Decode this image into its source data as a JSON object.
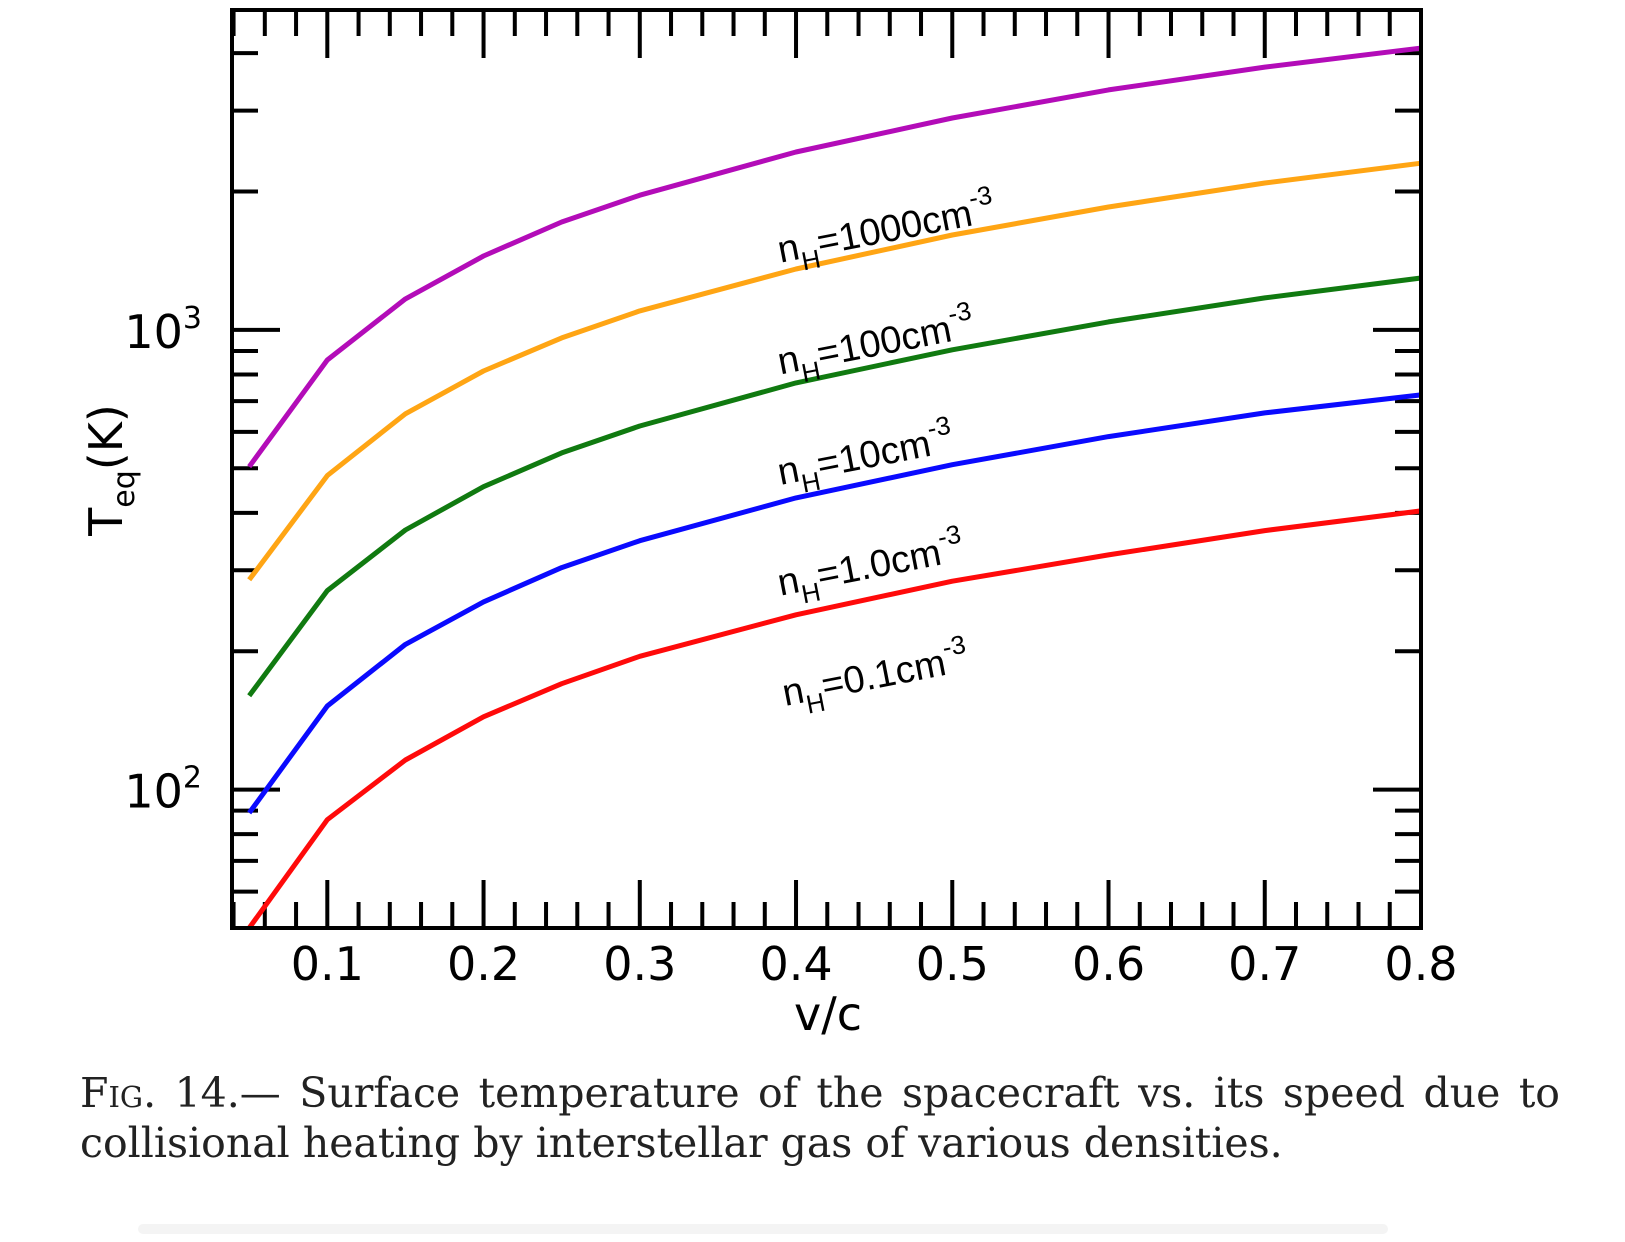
{
  "chart_data": {
    "type": "line",
    "title": "",
    "xlabel": "v/c",
    "ylabel_main": "T",
    "ylabel_sub": "eq",
    "ylabel_unit": "(K)",
    "xscale": "linear",
    "yscale": "log",
    "xlim": [
      0.039,
      0.8
    ],
    "ylim": [
      50,
      4965
    ],
    "grid": false,
    "x_ticks": [
      {
        "value": 0.1,
        "label": "0.1"
      },
      {
        "value": 0.2,
        "label": "0.2"
      },
      {
        "value": 0.3,
        "label": "0.3"
      },
      {
        "value": 0.4,
        "label": "0.4"
      },
      {
        "value": 0.5,
        "label": "0.5"
      },
      {
        "value": 0.6,
        "label": "0.6"
      },
      {
        "value": 0.7,
        "label": "0.7"
      },
      {
        "value": 0.8,
        "label": "0.8"
      }
    ],
    "y_ticks": [
      {
        "value": 100,
        "base": "10",
        "exp": "2"
      },
      {
        "value": 1000,
        "base": "10",
        "exp": "3"
      }
    ],
    "x": [
      0.05,
      0.1,
      0.15,
      0.2,
      0.25,
      0.3,
      0.4,
      0.5,
      0.6,
      0.7,
      0.8
    ],
    "series": [
      {
        "name": "nH=1000cm-3",
        "color": "#b30cb8",
        "values": [
          504,
          860,
          1168,
          1448,
          1717,
          1964,
          2438,
          2890,
          3327,
          3730,
          4102
        ]
      },
      {
        "name": "nH=100cm-3",
        "color": "#ffa514",
        "values": [
          286,
          482,
          657,
          814,
          961,
          1100,
          1357,
          1609,
          1851,
          2087,
          2305
        ]
      },
      {
        "name": "nH=10cm-3",
        "color": "#107a10",
        "values": [
          160,
          271,
          367,
          456,
          540,
          618,
          767,
          905,
          1041,
          1174,
          1297
        ]
      },
      {
        "name": "nH=1.0cm-3",
        "color": "#0a0aff",
        "values": [
          89,
          152,
          207,
          256,
          304,
          348,
          431,
          509,
          586,
          660,
          722
        ]
      },
      {
        "name": "nH=0.1cm-3",
        "color": "#ff0a0a",
        "values": [
          50,
          86,
          116,
          144,
          170,
          195,
          240,
          284,
          324,
          366,
          404
        ]
      }
    ],
    "annotations": [
      {
        "series": 0,
        "prefix": "n",
        "sub": "H",
        "text": "=1000cm",
        "sup": "-3",
        "anchor_x": 0.39,
        "anchor_y": 1400
      },
      {
        "series": 1,
        "prefix": "n",
        "sub": "H",
        "text": "=100cm",
        "sup": "-3",
        "anchor_x": 0.39,
        "anchor_y": 800
      },
      {
        "series": 2,
        "prefix": "n",
        "sub": "H",
        "text": "=10cm",
        "sup": "-3",
        "anchor_x": 0.39,
        "anchor_y": 460
      },
      {
        "series": 3,
        "prefix": "n",
        "sub": "H",
        "text": "=1.0cm",
        "sup": "-3",
        "anchor_x": 0.39,
        "anchor_y": 264
      },
      {
        "series": 4,
        "prefix": "n",
        "sub": "H",
        "text": "=0.1cm",
        "sup": "-3",
        "anchor_x": 0.393,
        "anchor_y": 152
      }
    ]
  },
  "caption": {
    "fig_label": "Fig. 14.",
    "dash": "—",
    "text": " Surface temperature of the spacecraft vs.  its speed due to collisional heating by interstellar gas of various densities."
  }
}
